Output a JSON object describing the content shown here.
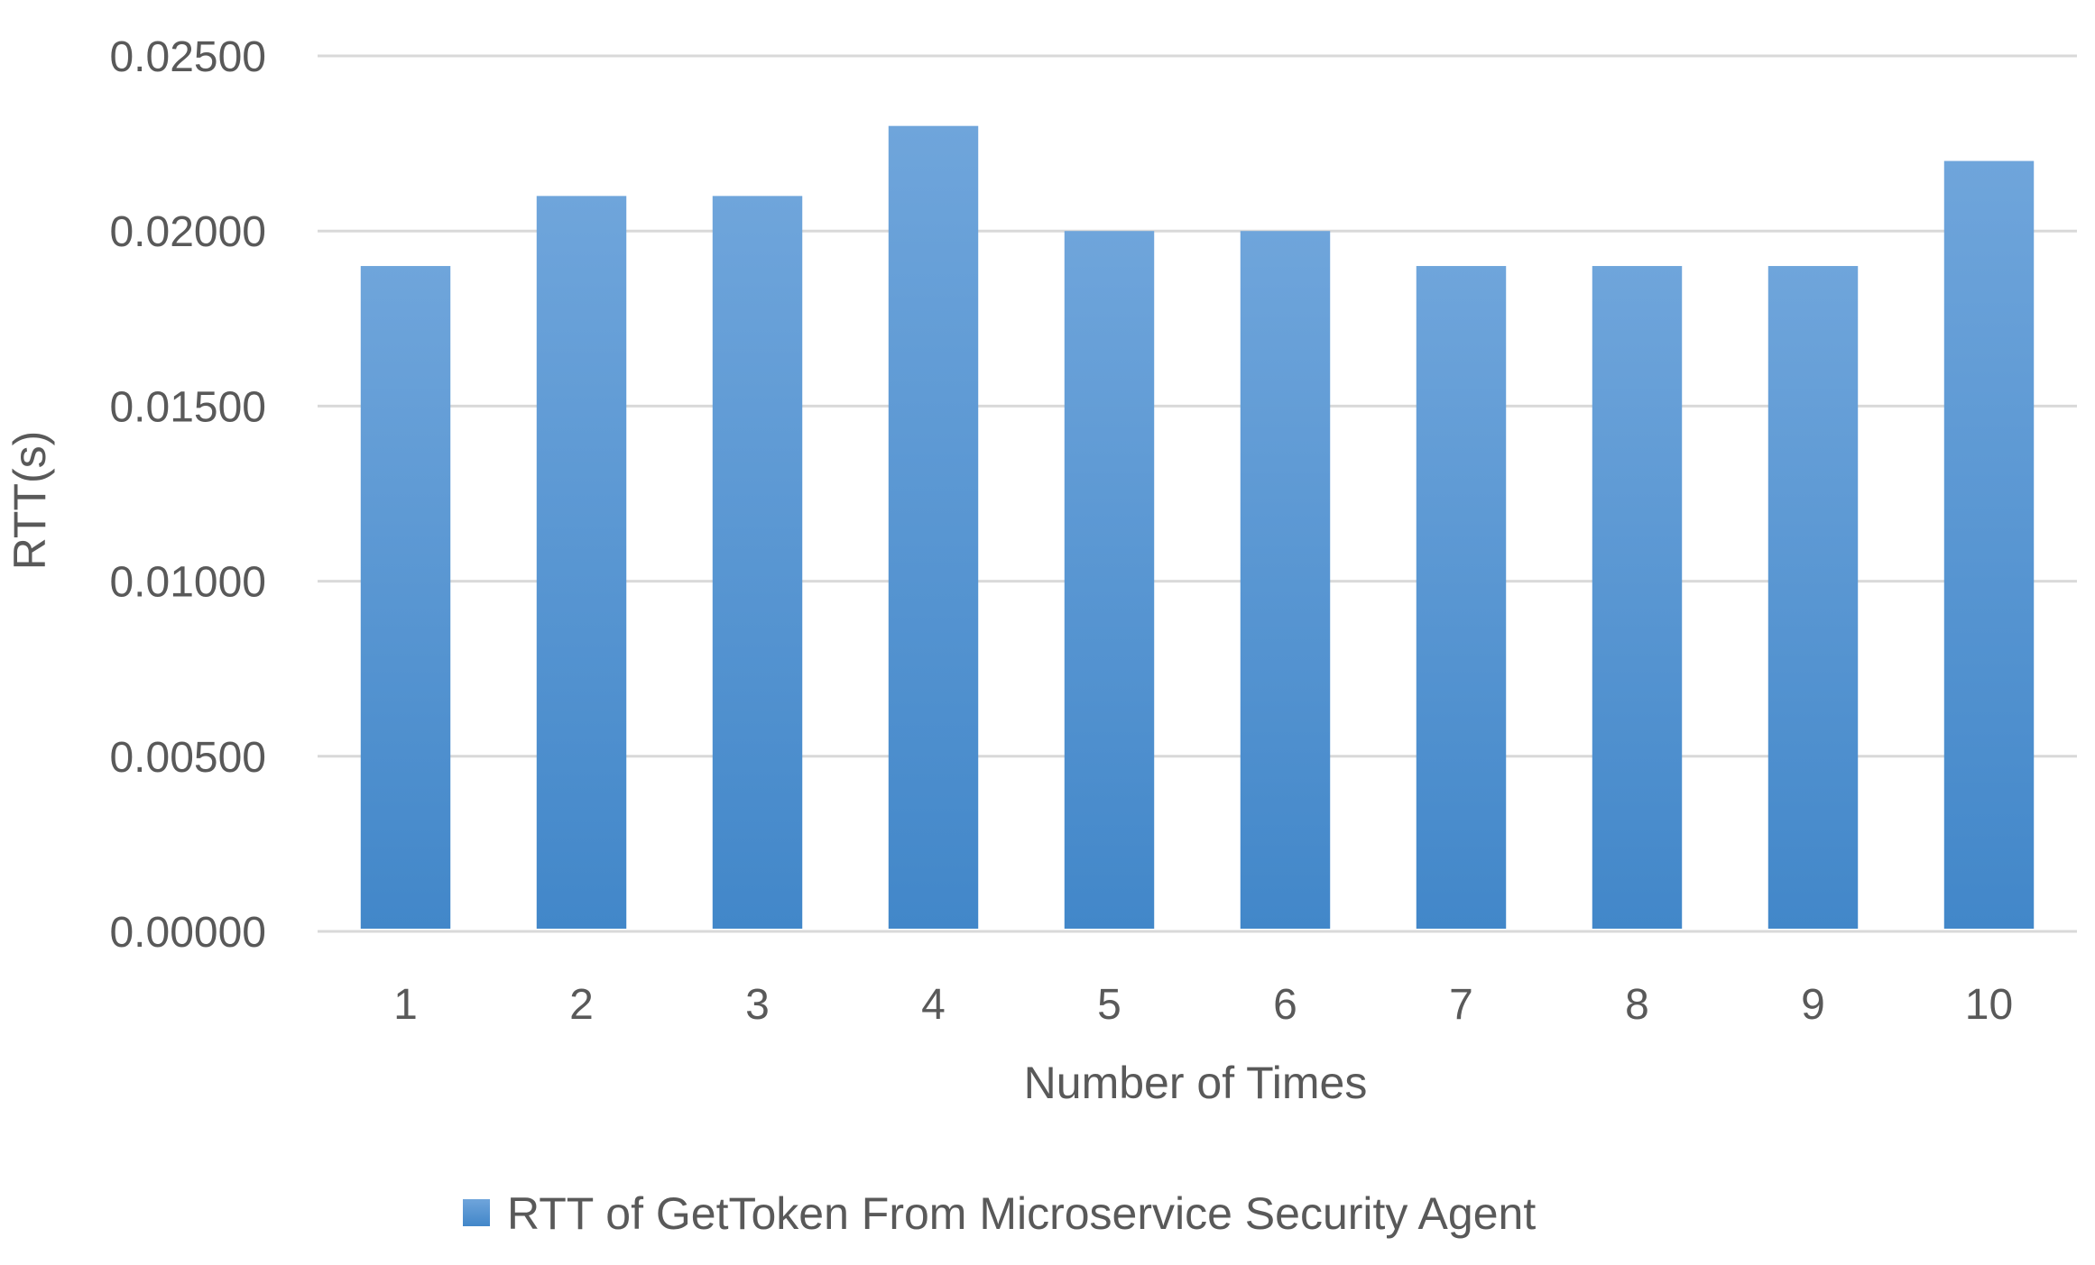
{
  "chart_data": {
    "type": "bar",
    "categories": [
      "1",
      "2",
      "3",
      "4",
      "5",
      "6",
      "7",
      "8",
      "9",
      "10"
    ],
    "series": [
      {
        "name": "RTT of GetToken From Microservice Security Agent",
        "values": [
          0.019,
          0.021,
          0.021,
          0.023,
          0.02,
          0.02,
          0.019,
          0.019,
          0.019,
          0.022
        ],
        "color": "#5B9BD5"
      }
    ],
    "title": "",
    "xlabel": "Number of Times",
    "ylabel": "RTT(s)",
    "ylim": [
      0,
      0.025
    ],
    "yticks": [
      0,
      0.005,
      0.01,
      0.015,
      0.02,
      0.025
    ],
    "ytick_labels": [
      "0.00000",
      "0.00500",
      "0.01000",
      "0.01500",
      "0.02000",
      "0.02500"
    ],
    "grid": true,
    "legend_position": "bottom",
    "colors": {
      "bar_top": "#6FA5DB",
      "bar_bottom": "#4287C9",
      "gridline": "#D9D9D9",
      "text": "#595959"
    }
  }
}
